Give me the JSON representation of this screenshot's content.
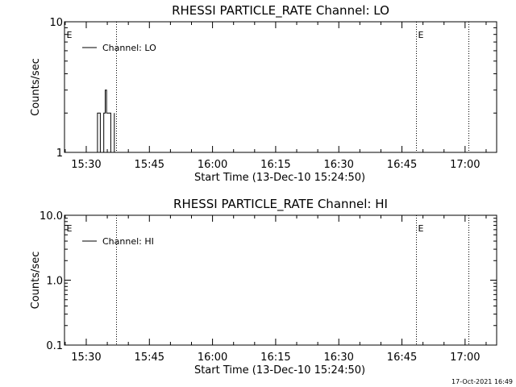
{
  "chart_data": [
    {
      "type": "line",
      "title": "RHESSI PARTICLE_RATE Channel: LO",
      "xlabel": "Start Time (13-Dec-10 15:24:50)",
      "ylabel": "Counts/sec",
      "yscale": "log",
      "ylim": [
        1,
        10
      ],
      "yticks": [
        "1",
        "10"
      ],
      "xlim": [
        "15:24:50",
        "17:07:30"
      ],
      "xticks": [
        "15:30",
        "15:45",
        "16:00",
        "16:15",
        "16:30",
        "16:45",
        "17:00"
      ],
      "legend": {
        "position": "top-left",
        "entries": [
          "Channel: LO"
        ]
      },
      "grid": false,
      "series": [
        {
          "name": "Channel: LO",
          "x": [
            "15:32:40",
            "15:32:40",
            "15:33:20",
            "15:33:20",
            "15:34:10",
            "15:34:10",
            "15:34:30",
            "15:34:30",
            "15:34:50",
            "15:34:50",
            "15:35:50",
            "15:35:50",
            "15:36:40",
            "15:36:40"
          ],
          "y": [
            1,
            2,
            2,
            1,
            1,
            2,
            2,
            3,
            3,
            2,
            2,
            1,
            1,
            2
          ]
        }
      ],
      "markers": [
        {
          "label": "E",
          "x": "15:24:50",
          "style": "dotted"
        },
        {
          "label": "",
          "x": "15:37:10",
          "style": "dotted"
        },
        {
          "label": "E",
          "x": "16:48:20",
          "style": "dotted"
        },
        {
          "label": "",
          "x": "17:00:50",
          "style": "dotted"
        }
      ]
    },
    {
      "type": "line",
      "title": "RHESSI PARTICLE_RATE Channel: HI",
      "xlabel": "Start Time (13-Dec-10 15:24:50)",
      "ylabel": "Counts/sec",
      "yscale": "log",
      "ylim": [
        0.1,
        10
      ],
      "yticks": [
        "0.1",
        "1.0",
        "10.0"
      ],
      "xlim": [
        "15:24:50",
        "17:07:30"
      ],
      "xticks": [
        "15:30",
        "15:45",
        "16:00",
        "16:15",
        "16:30",
        "16:45",
        "17:00"
      ],
      "legend": {
        "position": "top-left",
        "entries": [
          "Channel: HI"
        ]
      },
      "grid": false,
      "series": [
        {
          "name": "Channel: HI",
          "x": [],
          "y": []
        }
      ],
      "markers": [
        {
          "label": "E",
          "x": "15:24:50",
          "style": "dotted"
        },
        {
          "label": "",
          "x": "15:37:10",
          "style": "dotted"
        },
        {
          "label": "E",
          "x": "16:48:20",
          "style": "dotted"
        },
        {
          "label": "",
          "x": "17:00:50",
          "style": "dotted"
        }
      ]
    }
  ],
  "footer": {
    "timestamp": "17-Oct-2021 16:49"
  }
}
